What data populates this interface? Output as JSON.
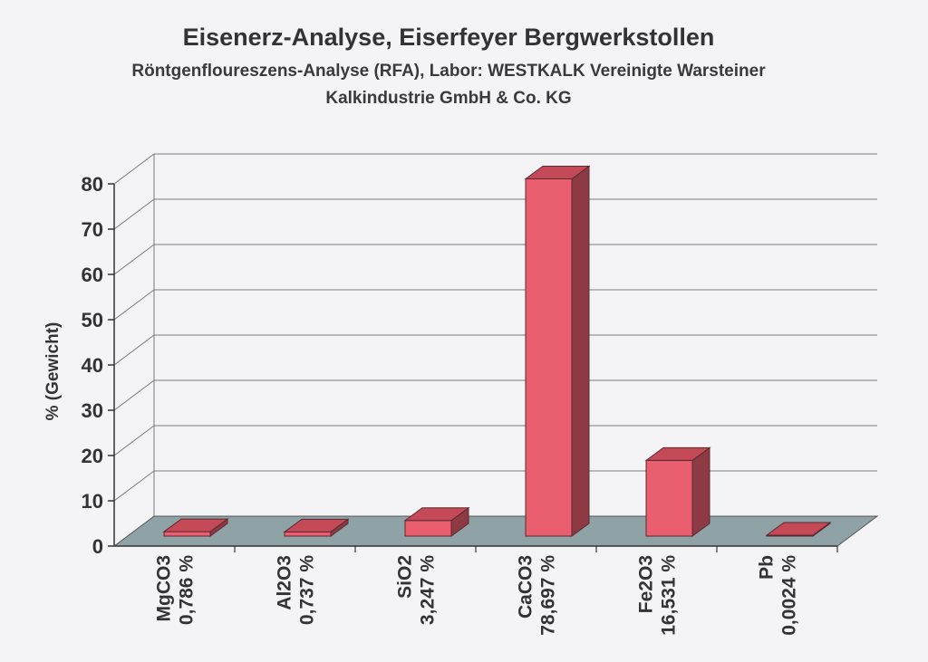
{
  "chart_data": {
    "type": "bar",
    "title": "Eisenerz-Analyse, Eiserfeyer Bergwerkstollen",
    "subtitle_lines": [
      "Röntgenfloureszens-Analyse (RFA), Labor: WESTKALK Vereinigte Warsteiner",
      "Kalkindustrie GmbH & Co. KG"
    ],
    "xlabel": "",
    "ylabel": "% (Gewicht)",
    "ylim": [
      0,
      80
    ],
    "yticks": [
      "0",
      "10",
      "20",
      "30",
      "40",
      "50",
      "60",
      "70",
      "80"
    ],
    "grid": true,
    "categories": [
      "MgCO3",
      "Al2O3",
      "SiO2",
      "CaCO3",
      "Fe2O3",
      "Pb"
    ],
    "value_labels": [
      "0,786 %",
      "0,737 %",
      "3,247 %",
      "78,697 %",
      "16,531 %",
      "0,0024 %"
    ],
    "values": [
      0.786,
      0.737,
      3.247,
      78.697,
      16.531,
      0.0024
    ],
    "colors": {
      "bar_front": "#ea5f6f",
      "bar_side": "#8e3a44",
      "bar_top": "#c44a58",
      "floor": "#8fa3a6",
      "grid": "#7a7a7a"
    }
  }
}
